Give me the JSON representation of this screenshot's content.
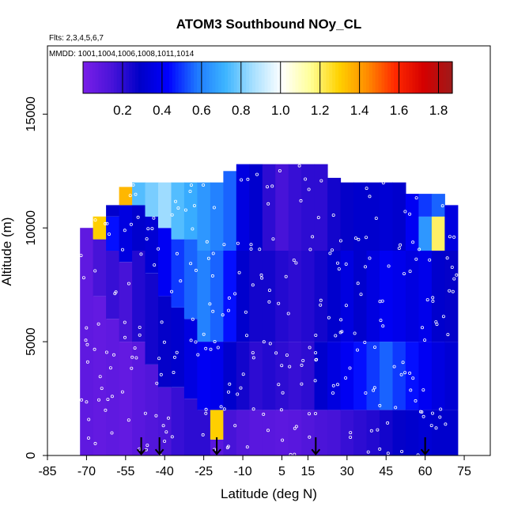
{
  "chart_data": {
    "type": "heatmap",
    "title": "ATOM3 Southbound NOy_CL",
    "flights_note": "Flts: 2,3,4,5,6,7",
    "dates_note": "MMDD: 1001,1004,1006,1008,1011,1014",
    "xlabel": "Latitude (deg N)",
    "ylabel": "Altitude (m)",
    "xlim": [
      -85,
      85
    ],
    "ylim": [
      0,
      18000
    ],
    "x_ticks": [
      -85,
      -70,
      -55,
      -40,
      -25,
      -10,
      5,
      15,
      30,
      45,
      60,
      75
    ],
    "y_ticks": [
      0,
      5000,
      10000,
      15000
    ],
    "colorbar": {
      "min": 0.0,
      "max": 1.87,
      "ticks": [
        0.2,
        0.4,
        0.6,
        0.8,
        1.0,
        1.2,
        1.4,
        1.6,
        1.8
      ],
      "colors": [
        "#7a1fe8",
        "#4a14d9",
        "#0000c8",
        "#0000ff",
        "#1e78ff",
        "#3cb4ff",
        "#a8e0ff",
        "#ffffff",
        "#ffff99",
        "#ffd200",
        "#ff8c00",
        "#ff2800",
        "#d40000",
        "#9e1a1a"
      ]
    },
    "grid": false,
    "profile_markers_lat": [
      -49,
      -42,
      -20,
      18,
      60
    ],
    "columns": [
      {
        "lat": -70,
        "top": 10000,
        "bands": [
          [
            0,
            10000,
            0.08
          ]
        ]
      },
      {
        "lat": -65,
        "top": 10500,
        "bands": [
          [
            0,
            7000,
            0.07
          ],
          [
            7000,
            9500,
            0.15
          ],
          [
            9500,
            10500,
            1.3
          ]
        ]
      },
      {
        "lat": -60,
        "top": 11000,
        "bands": [
          [
            0,
            6000,
            0.08
          ],
          [
            6000,
            9000,
            0.18
          ],
          [
            9000,
            10500,
            0.45
          ],
          [
            10500,
            11000,
            0.3
          ]
        ]
      },
      {
        "lat": -55,
        "top": 11800,
        "bands": [
          [
            0,
            5000,
            0.07
          ],
          [
            5000,
            8500,
            0.15
          ],
          [
            8500,
            11000,
            0.35
          ],
          [
            11000,
            11800,
            1.35
          ]
        ]
      },
      {
        "lat": -50,
        "top": 12000,
        "bands": [
          [
            0,
            5000,
            0.1
          ],
          [
            5000,
            9000,
            0.22
          ],
          [
            9000,
            11000,
            0.3
          ],
          [
            11000,
            12000,
            0.75
          ]
        ]
      },
      {
        "lat": -45,
        "top": 12000,
        "bands": [
          [
            0,
            4000,
            0.12
          ],
          [
            4000,
            8000,
            0.25
          ],
          [
            8000,
            10500,
            0.32
          ],
          [
            10500,
            12000,
            0.8
          ]
        ]
      },
      {
        "lat": -40,
        "top": 12000,
        "bands": [
          [
            0,
            3000,
            0.14
          ],
          [
            3000,
            7000,
            0.28
          ],
          [
            7000,
            10000,
            0.4
          ],
          [
            10000,
            12000,
            0.85
          ]
        ]
      },
      {
        "lat": -35,
        "top": 12000,
        "bands": [
          [
            0,
            3000,
            0.18
          ],
          [
            3000,
            6500,
            0.3
          ],
          [
            6500,
            9500,
            0.5
          ],
          [
            9500,
            12000,
            0.75
          ]
        ]
      },
      {
        "lat": -30,
        "top": 12000,
        "bands": [
          [
            0,
            2500,
            0.2
          ],
          [
            2500,
            6000,
            0.35
          ],
          [
            6000,
            9500,
            0.55
          ],
          [
            9500,
            12000,
            0.7
          ]
        ]
      },
      {
        "lat": -25,
        "top": 12000,
        "bands": [
          [
            0,
            2000,
            0.2
          ],
          [
            2000,
            5000,
            0.4
          ],
          [
            5000,
            9000,
            0.6
          ],
          [
            9000,
            12000,
            0.65
          ]
        ]
      },
      {
        "lat": -20,
        "top": 12000,
        "bands": [
          [
            0,
            700,
            0.1
          ],
          [
            700,
            2000,
            1.3
          ],
          [
            2000,
            5000,
            0.38
          ],
          [
            5000,
            9000,
            0.55
          ],
          [
            9000,
            12000,
            0.6
          ]
        ]
      },
      {
        "lat": -15,
        "top": 12500,
        "bands": [
          [
            0,
            2000,
            0.15
          ],
          [
            2000,
            5000,
            0.3
          ],
          [
            5000,
            9000,
            0.45
          ],
          [
            9000,
            12500,
            0.55
          ]
        ]
      },
      {
        "lat": -10,
        "top": 12800,
        "bands": [
          [
            0,
            2000,
            0.12
          ],
          [
            2000,
            5000,
            0.25
          ],
          [
            5000,
            9000,
            0.3
          ],
          [
            9000,
            12800,
            0.35
          ]
        ]
      },
      {
        "lat": -5,
        "top": 12800,
        "bands": [
          [
            0,
            2000,
            0.1
          ],
          [
            2000,
            5000,
            0.2
          ],
          [
            5000,
            9000,
            0.25
          ],
          [
            9000,
            12800,
            0.3
          ]
        ]
      },
      {
        "lat": 0,
        "top": 12800,
        "bands": [
          [
            0,
            2000,
            0.1
          ],
          [
            2000,
            5000,
            0.22
          ],
          [
            5000,
            9000,
            0.25
          ],
          [
            9000,
            12800,
            0.2
          ]
        ]
      },
      {
        "lat": 5,
        "top": 12800,
        "bands": [
          [
            0,
            2000,
            0.09
          ],
          [
            2000,
            5000,
            0.2
          ],
          [
            5000,
            9000,
            0.22
          ],
          [
            9000,
            12800,
            0.15
          ]
        ]
      },
      {
        "lat": 10,
        "top": 12800,
        "bands": [
          [
            0,
            2000,
            0.1
          ],
          [
            2000,
            5000,
            0.18
          ],
          [
            5000,
            9000,
            0.2
          ],
          [
            9000,
            12800,
            0.18
          ]
        ]
      },
      {
        "lat": 15,
        "top": 12800,
        "bands": [
          [
            0,
            2000,
            0.12
          ],
          [
            2000,
            5000,
            0.2
          ],
          [
            5000,
            9000,
            0.22
          ],
          [
            9000,
            12800,
            0.2
          ]
        ]
      },
      {
        "lat": 20,
        "top": 12800,
        "bands": [
          [
            0,
            2000,
            0.14
          ],
          [
            2000,
            5000,
            0.3
          ],
          [
            5000,
            9000,
            0.25
          ],
          [
            9000,
            12800,
            0.2
          ]
        ]
      },
      {
        "lat": 25,
        "top": 12200,
        "bands": [
          [
            0,
            2000,
            0.15
          ],
          [
            2000,
            5000,
            0.35
          ],
          [
            5000,
            9000,
            0.3
          ],
          [
            9000,
            12200,
            0.25
          ]
        ]
      },
      {
        "lat": 30,
        "top": 12000,
        "bands": [
          [
            0,
            2000,
            0.18
          ],
          [
            2000,
            5000,
            0.4
          ],
          [
            5000,
            9000,
            0.35
          ],
          [
            9000,
            12000,
            0.28
          ]
        ]
      },
      {
        "lat": 35,
        "top": 12000,
        "bands": [
          [
            0,
            2000,
            0.2
          ],
          [
            2000,
            5000,
            0.45
          ],
          [
            5000,
            9000,
            0.3
          ],
          [
            9000,
            12000,
            0.3
          ]
        ]
      },
      {
        "lat": 40,
        "top": 12000,
        "bands": [
          [
            0,
            2000,
            0.22
          ],
          [
            2000,
            5000,
            0.5
          ],
          [
            5000,
            9000,
            0.35
          ],
          [
            9000,
            12000,
            0.3
          ]
        ]
      },
      {
        "lat": 45,
        "top": 12000,
        "bands": [
          [
            0,
            2000,
            0.25
          ],
          [
            2000,
            5000,
            0.55
          ],
          [
            5000,
            9000,
            0.4
          ],
          [
            9000,
            12000,
            0.32
          ]
        ]
      },
      {
        "lat": 50,
        "top": 12000,
        "bands": [
          [
            0,
            2000,
            0.28
          ],
          [
            2000,
            5000,
            0.5
          ],
          [
            5000,
            9000,
            0.38
          ],
          [
            9000,
            12000,
            0.3
          ]
        ]
      },
      {
        "lat": 55,
        "top": 11500,
        "bands": [
          [
            0,
            2000,
            0.3
          ],
          [
            2000,
            5000,
            0.45
          ],
          [
            5000,
            9000,
            0.35
          ],
          [
            9000,
            11500,
            0.4
          ]
        ]
      },
      {
        "lat": 60,
        "top": 11500,
        "bands": [
          [
            0,
            2000,
            0.32
          ],
          [
            2000,
            5000,
            0.4
          ],
          [
            5000,
            9000,
            0.38
          ],
          [
            9000,
            10500,
            0.65
          ],
          [
            10500,
            11500,
            0.5
          ]
        ]
      },
      {
        "lat": 65,
        "top": 11500,
        "bands": [
          [
            0,
            2000,
            0.3
          ],
          [
            2000,
            5000,
            0.35
          ],
          [
            5000,
            9000,
            0.3
          ],
          [
            9000,
            10500,
            1.2
          ],
          [
            10500,
            11500,
            0.55
          ]
        ]
      },
      {
        "lat": 70,
        "top": 11000,
        "bands": [
          [
            0,
            2000,
            0.3
          ],
          [
            2000,
            5000,
            0.32
          ],
          [
            5000,
            9000,
            0.28
          ],
          [
            9000,
            11000,
            0.35
          ]
        ]
      }
    ]
  }
}
